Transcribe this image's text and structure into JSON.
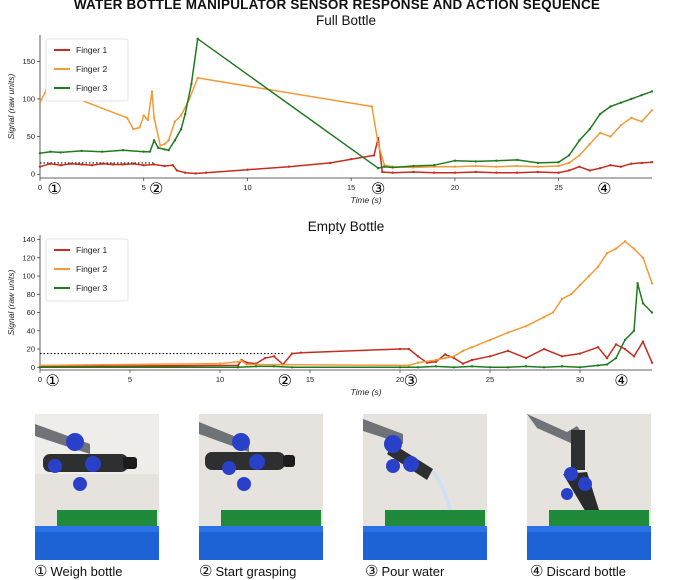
{
  "title": "WATER BOTTLE MANIPULATOR SENSOR RESPONSE AND ACTION SEQUENCE",
  "colors": {
    "Finger 1": "#c62d20",
    "Finger 2": "#f29a38",
    "Finger 3": "#1f7a1f"
  },
  "steps": [
    {
      "marker": "①",
      "label": "Weigh bottle",
      "icon": "weigh-photo"
    },
    {
      "marker": "②",
      "label": "Start grasping",
      "icon": "grasp-photo"
    },
    {
      "marker": "③",
      "label": "Pour water",
      "icon": "pour-photo"
    },
    {
      "marker": "④",
      "label": "Discard bottle",
      "icon": "discard-photo"
    }
  ],
  "chart_data": [
    {
      "type": "line",
      "title": "Full Bottle",
      "xlabel": "Time (s)",
      "ylabel": "Signal (raw units)",
      "xlim": [
        0,
        29.5
      ],
      "ylim": [
        -5,
        185
      ],
      "xticks": [
        0,
        5,
        10,
        15,
        20,
        25
      ],
      "yticks": [
        0,
        50,
        100,
        150
      ],
      "legend": "top-left",
      "threshold": 15,
      "markers": [
        {
          "label": "①",
          "x": 0.7
        },
        {
          "label": "②",
          "x": 5.6
        },
        {
          "label": "③",
          "x": 16.3
        },
        {
          "label": "④",
          "x": 27.2
        }
      ],
      "series": [
        {
          "name": "Finger 1",
          "points": [
            [
              0,
              10
            ],
            [
              0.5,
              14
            ],
            [
              1,
              12
            ],
            [
              1.5,
              14
            ],
            [
              2,
              13
            ],
            [
              2.5,
              12
            ],
            [
              3,
              14
            ],
            [
              3.5,
              13
            ],
            [
              4,
              13
            ],
            [
              4.5,
              14
            ],
            [
              5,
              12
            ],
            [
              5.5,
              13
            ],
            [
              6,
              11
            ],
            [
              6.4,
              12
            ],
            [
              6.6,
              5
            ],
            [
              7,
              2
            ],
            [
              7.5,
              1
            ],
            [
              8,
              2
            ],
            [
              10,
              6
            ],
            [
              12,
              10
            ],
            [
              14,
              15
            ],
            [
              15,
              20
            ],
            [
              16.1,
              25
            ],
            [
              16.3,
              48
            ],
            [
              16.5,
              3
            ],
            [
              17,
              2
            ],
            [
              18,
              3
            ],
            [
              19,
              2
            ],
            [
              20,
              2
            ],
            [
              21,
              3
            ],
            [
              22,
              2
            ],
            [
              23,
              2
            ],
            [
              24,
              3
            ],
            [
              25,
              2
            ],
            [
              25.5,
              5
            ],
            [
              26,
              10
            ],
            [
              26.5,
              5
            ],
            [
              27,
              8
            ],
            [
              27.5,
              12
            ],
            [
              28,
              10
            ],
            [
              28.5,
              14
            ],
            [
              29,
              15
            ],
            [
              29.5,
              16
            ]
          ]
        },
        {
          "name": "Finger 2",
          "points": [
            [
              0,
              95
            ],
            [
              0.3,
              112
            ],
            [
              0.5,
              114
            ],
            [
              4.2,
              75
            ],
            [
              4.5,
              60
            ],
            [
              4.8,
              62
            ],
            [
              5,
              78
            ],
            [
              5.2,
              72
            ],
            [
              5.4,
              110
            ],
            [
              5.5,
              75
            ],
            [
              5.8,
              38
            ],
            [
              6,
              40
            ],
            [
              6.2,
              45
            ],
            [
              6.5,
              70
            ],
            [
              6.8,
              78
            ],
            [
              7.2,
              100
            ],
            [
              7.6,
              128
            ],
            [
              16,
              90
            ],
            [
              16.3,
              40
            ],
            [
              16.6,
              12
            ],
            [
              17,
              10
            ],
            [
              18,
              9
            ],
            [
              19,
              10
            ],
            [
              20,
              10
            ],
            [
              21,
              11
            ],
            [
              22,
              10
            ],
            [
              23,
              11
            ],
            [
              24,
              10
            ],
            [
              25,
              11
            ],
            [
              25.5,
              15
            ],
            [
              26,
              25
            ],
            [
              26.5,
              40
            ],
            [
              27,
              55
            ],
            [
              27.5,
              50
            ],
            [
              28,
              65
            ],
            [
              28.5,
              75
            ],
            [
              29,
              70
            ],
            [
              29.5,
              85
            ]
          ]
        },
        {
          "name": "Finger 3",
          "points": [
            [
              0,
              28
            ],
            [
              0.5,
              30
            ],
            [
              1,
              29
            ],
            [
              2,
              31
            ],
            [
              3,
              30
            ],
            [
              4,
              32
            ],
            [
              5,
              30
            ],
            [
              5.3,
              30
            ],
            [
              5.5,
              45
            ],
            [
              5.7,
              35
            ],
            [
              6,
              33
            ],
            [
              6.2,
              32
            ],
            [
              6.5,
              45
            ],
            [
              6.8,
              60
            ],
            [
              7,
              80
            ],
            [
              7.3,
              120
            ],
            [
              7.6,
              180
            ],
            [
              16.3,
              8
            ],
            [
              16.6,
              10
            ],
            [
              17,
              9
            ],
            [
              18,
              11
            ],
            [
              19,
              12
            ],
            [
              20,
              18
            ],
            [
              21,
              17
            ],
            [
              22,
              18
            ],
            [
              23,
              19
            ],
            [
              24,
              15
            ],
            [
              25,
              16
            ],
            [
              25.5,
              25
            ],
            [
              26,
              45
            ],
            [
              26.5,
              60
            ],
            [
              27,
              80
            ],
            [
              27.5,
              90
            ],
            [
              28,
              95
            ],
            [
              28.5,
              100
            ],
            [
              29,
              105
            ],
            [
              29.5,
              110
            ]
          ]
        }
      ]
    },
    {
      "type": "line",
      "title": "Empty Bottle",
      "xlabel": "Time (s)",
      "ylabel": "Signal (raw units)",
      "xlim": [
        0,
        34
      ],
      "ylim": [
        -3,
        145
      ],
      "xticks": [
        0,
        5,
        10,
        15,
        20,
        25,
        30
      ],
      "yticks": [
        0,
        20,
        40,
        60,
        80,
        100,
        120,
        140
      ],
      "legend": "top-left",
      "threshold": 15,
      "markers": [
        {
          "label": "①",
          "x": 0.7
        },
        {
          "label": "②",
          "x": 13.6
        },
        {
          "label": "③",
          "x": 20.6
        },
        {
          "label": "④",
          "x": 32.3
        }
      ],
      "series": [
        {
          "name": "Finger 1",
          "points": [
            [
              0,
              1
            ],
            [
              11,
              2
            ],
            [
              11.2,
              8
            ],
            [
              11.5,
              5
            ],
            [
              12,
              4
            ],
            [
              12.5,
              10
            ],
            [
              13,
              12
            ],
            [
              13.5,
              3
            ],
            [
              14,
              15
            ],
            [
              14.5,
              16
            ],
            [
              20,
              20
            ],
            [
              20.5,
              20
            ],
            [
              21,
              12
            ],
            [
              21.5,
              5
            ],
            [
              22,
              6
            ],
            [
              22.5,
              14
            ],
            [
              23,
              10
            ],
            [
              23.5,
              4
            ],
            [
              24,
              8
            ],
            [
              25,
              12
            ],
            [
              26,
              18
            ],
            [
              27,
              10
            ],
            [
              28,
              20
            ],
            [
              29,
              12
            ],
            [
              30,
              15
            ],
            [
              31,
              22
            ],
            [
              31.5,
              10
            ],
            [
              32,
              25
            ],
            [
              32.5,
              20
            ],
            [
              33,
              12
            ],
            [
              33.5,
              28
            ],
            [
              34,
              5
            ]
          ]
        },
        {
          "name": "Finger 2",
          "points": [
            [
              0,
              2
            ],
            [
              10,
              4
            ],
            [
              11,
              6
            ],
            [
              11.2,
              7
            ],
            [
              11.5,
              3
            ],
            [
              20.5,
              2
            ],
            [
              21,
              5
            ],
            [
              22,
              8
            ],
            [
              22.5,
              10
            ],
            [
              23,
              12
            ],
            [
              23.5,
              18
            ],
            [
              24,
              22
            ],
            [
              25,
              30
            ],
            [
              26,
              38
            ],
            [
              27,
              45
            ],
            [
              28,
              55
            ],
            [
              28.5,
              60
            ],
            [
              29,
              75
            ],
            [
              29.5,
              80
            ],
            [
              30,
              90
            ],
            [
              30.5,
              100
            ],
            [
              31,
              110
            ],
            [
              31.5,
              125
            ],
            [
              32,
              130
            ],
            [
              32.5,
              138
            ],
            [
              33,
              130
            ],
            [
              33.5,
              120
            ],
            [
              34,
              92
            ]
          ]
        },
        {
          "name": "Finger 3",
          "points": [
            [
              0,
              0
            ],
            [
              11,
              0
            ],
            [
              12,
              1
            ],
            [
              13,
              1
            ],
            [
              14,
              0
            ],
            [
              20,
              0
            ],
            [
              21,
              0
            ],
            [
              22,
              1
            ],
            [
              23,
              0
            ],
            [
              24,
              1
            ],
            [
              25,
              0
            ],
            [
              26,
              0
            ],
            [
              27,
              1
            ],
            [
              28,
              0
            ],
            [
              29,
              1
            ],
            [
              30,
              0
            ],
            [
              31,
              2
            ],
            [
              31.5,
              3
            ],
            [
              32,
              10
            ],
            [
              32.5,
              30
            ],
            [
              33,
              40
            ],
            [
              33.2,
              92
            ],
            [
              33.5,
              70
            ],
            [
              34,
              60
            ]
          ]
        }
      ]
    }
  ]
}
